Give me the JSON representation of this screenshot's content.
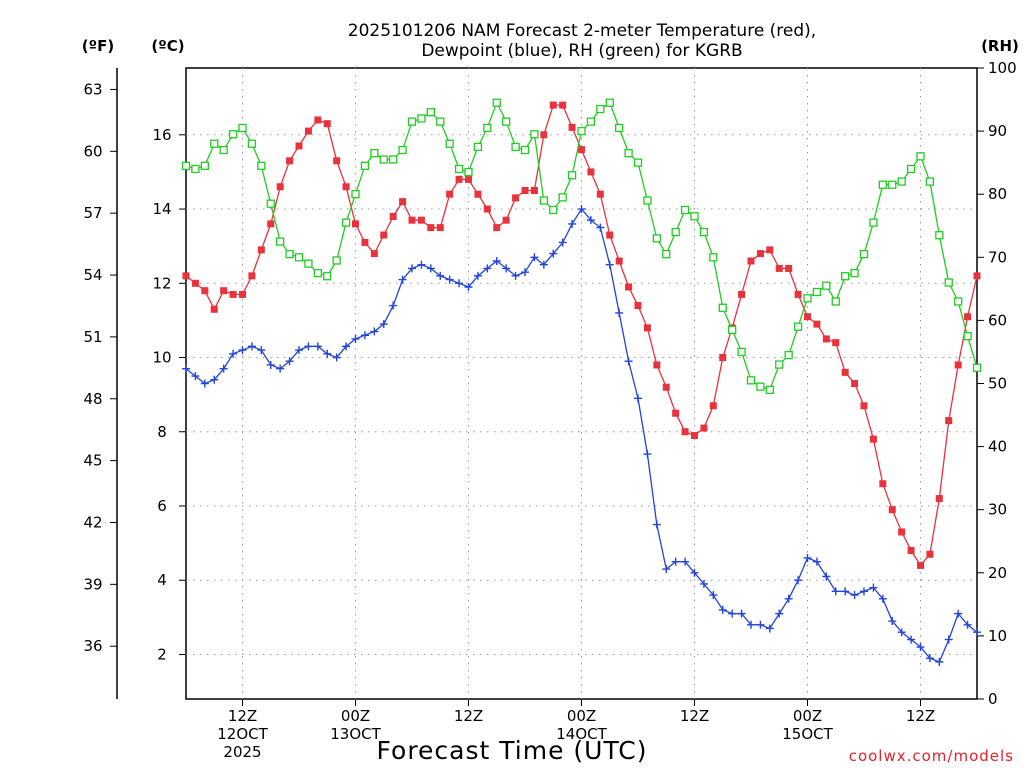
{
  "chart_data": {
    "type": "line",
    "title_line1": "2025101206 NAM Forecast 2-meter Temperature (red),",
    "title_line2": "Dewpoint (blue), RH (green) for KGRB",
    "xlabel": "Forecast Time (UTC)",
    "credit": "coolwx.com/models",
    "unit_f": "(ºF)",
    "unit_c": "(ºC)",
    "unit_rh": "(RH)",
    "x_tick_labels": [
      {
        "hour": 6,
        "lines": [
          "12Z",
          "12OCT",
          "2025"
        ]
      },
      {
        "hour": 18,
        "lines": [
          "00Z",
          "13OCT"
        ]
      },
      {
        "hour": 30,
        "lines": [
          "12Z"
        ]
      },
      {
        "hour": 42,
        "lines": [
          "00Z",
          "14OCT"
        ]
      },
      {
        "hour": 54,
        "lines": [
          "12Z"
        ]
      },
      {
        "hour": 66,
        "lines": [
          "00Z",
          "15OCT"
        ]
      },
      {
        "hour": 78,
        "lines": [
          "12Z"
        ]
      }
    ],
    "x_range_hours": [
      0,
      84
    ],
    "temp_c_range": [
      0.8,
      17.8
    ],
    "rh_range": [
      0,
      100
    ],
    "left_f_ticks": [
      "36",
      "39",
      "42",
      "45",
      "48",
      "51",
      "54",
      "57",
      "60",
      "63"
    ],
    "left_c_ticks": [
      "2",
      "4",
      "6",
      "8",
      "10",
      "12",
      "14",
      "16"
    ],
    "right_rh_ticks": [
      "0",
      "10",
      "20",
      "30",
      "40",
      "50",
      "60",
      "70",
      "80",
      "90",
      "100"
    ],
    "colors": {
      "temperature": "#e8323c",
      "dewpoint": "#2244dd",
      "rh": "#22cc22"
    },
    "series": [
      {
        "key": "temperature",
        "marker": "filled-square",
        "values": [
          12.2,
          12.0,
          11.8,
          11.3,
          11.8,
          11.7,
          11.7,
          12.2,
          12.9,
          13.6,
          14.6,
          15.3,
          15.7,
          16.1,
          16.4,
          16.3,
          15.3,
          14.6,
          13.6,
          13.1,
          12.8,
          13.3,
          13.8,
          14.2,
          13.7,
          13.7,
          13.5,
          13.5,
          14.4,
          14.8,
          14.8,
          14.4,
          14.0,
          13.5,
          13.7,
          14.3,
          14.5,
          14.5,
          16.0,
          16.8,
          16.8,
          16.2,
          15.6,
          15.0,
          14.4,
          13.3,
          12.6,
          11.9,
          11.4,
          10.8,
          9.8,
          9.2,
          8.5,
          8.0,
          7.9,
          8.1,
          8.7,
          10.0,
          10.8,
          11.7,
          12.6,
          12.8,
          12.9,
          12.4,
          12.4,
          11.7,
          11.1,
          10.9,
          10.5,
          10.4,
          9.6,
          9.3,
          8.7,
          7.8,
          6.6,
          5.9,
          5.3,
          4.8,
          4.4,
          4.7,
          6.2,
          8.3,
          9.8,
          11.1,
          12.2
        ]
      },
      {
        "key": "dewpoint",
        "marker": "plus",
        "values": [
          9.7,
          9.5,
          9.3,
          9.4,
          9.7,
          10.1,
          10.2,
          10.3,
          10.2,
          9.8,
          9.7,
          9.9,
          10.2,
          10.3,
          10.3,
          10.1,
          10.0,
          10.3,
          10.5,
          10.6,
          10.7,
          10.9,
          11.4,
          12.1,
          12.4,
          12.5,
          12.4,
          12.2,
          12.1,
          12.0,
          11.9,
          12.2,
          12.4,
          12.6,
          12.4,
          12.2,
          12.3,
          12.7,
          12.5,
          12.8,
          13.1,
          13.6,
          14.0,
          13.7,
          13.5,
          12.5,
          11.2,
          9.9,
          8.9,
          7.4,
          5.5,
          4.3,
          4.5,
          4.5,
          4.2,
          3.9,
          3.6,
          3.2,
          3.1,
          3.1,
          2.8,
          2.8,
          2.7,
          3.1,
          3.5,
          4.0,
          4.6,
          4.5,
          4.1,
          3.7,
          3.7,
          3.6,
          3.7,
          3.8,
          3.5,
          2.9,
          2.6,
          2.4,
          2.2,
          1.9,
          1.8,
          2.4,
          3.1,
          2.8,
          2.6
        ]
      },
      {
        "key": "rh",
        "marker": "open-square",
        "values": [
          84.5,
          84.0,
          84.5,
          88.0,
          87.0,
          89.5,
          90.5,
          88.0,
          84.5,
          78.5,
          72.5,
          70.5,
          70.0,
          69.0,
          67.5,
          67.0,
          69.5,
          75.5,
          80.0,
          84.5,
          86.5,
          85.5,
          85.5,
          87.0,
          91.5,
          92.0,
          93.0,
          91.5,
          88.0,
          84.0,
          83.5,
          87.5,
          90.5,
          94.5,
          91.5,
          87.5,
          87.0,
          89.5,
          79.0,
          77.5,
          79.5,
          83.0,
          90.0,
          91.5,
          93.5,
          94.5,
          90.5,
          86.5,
          85.0,
          79.0,
          73.0,
          70.5,
          74.0,
          77.5,
          76.5,
          74.0,
          70.0,
          62.0,
          58.5,
          55.0,
          50.5,
          49.5,
          49.0,
          53.0,
          54.5,
          59.0,
          63.5,
          64.5,
          65.5,
          63.0,
          67.0,
          67.5,
          70.5,
          75.5,
          81.5,
          81.5,
          82.0,
          84.0,
          86.0,
          82.0,
          73.5,
          66.0,
          63.0,
          57.5,
          52.5
        ]
      }
    ]
  }
}
